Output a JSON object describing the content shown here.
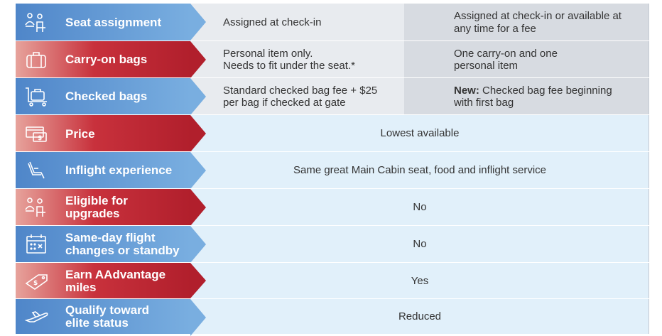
{
  "rows": [
    {
      "label": "Seat assignment",
      "icon": "seat-selection-icon",
      "color": "blue",
      "basic": "Assigned at check-in",
      "main": "Assigned at check-in or available at any time for a fee"
    },
    {
      "label": "Carry-on bags",
      "icon": "carry-on-bag-icon",
      "color": "red",
      "basic_line1": "Personal item only.",
      "basic_line2": "Needs to fit under the seat.*",
      "main_line1": "One carry-on and one",
      "main_line2": "personal item"
    },
    {
      "label": "Checked bags",
      "icon": "luggage-cart-icon",
      "color": "blue",
      "basic_line1": "Standard checked bag fee + $25",
      "basic_line2": "per bag if checked at gate",
      "main_bold": "New:",
      "main_rest": " Checked bag fee beginning",
      "main_line2": "with first bag"
    },
    {
      "label": "Price",
      "icon": "ticket-price-icon",
      "color": "red",
      "value": "Lowest available"
    },
    {
      "label": "Inflight experience",
      "icon": "reclining-seat-icon",
      "color": "blue",
      "value": "Same great Main Cabin seat, food and inflight service"
    },
    {
      "label_line1": "Eligible for",
      "label_line2": "upgrades",
      "icon": "upgrade-people-icon",
      "color": "red",
      "value": "No"
    },
    {
      "label_line1": "Same-day flight",
      "label_line2": "changes or standby",
      "icon": "calendar-icon",
      "color": "blue",
      "value": "No"
    },
    {
      "label_line1": "Earn AAdvantage",
      "label_line2": "miles",
      "icon": "miles-tag-icon",
      "color": "red",
      "value": "Yes"
    },
    {
      "label_line1": "Qualify toward",
      "label_line2": "elite status",
      "icon": "airplane-takeoff-icon",
      "color": "blue",
      "value": "Reduced"
    }
  ],
  "colors": {
    "blue": "#5b93d1",
    "red": "#c0283a",
    "basic_bg": "#e8ebef",
    "main_bg": "#d7dbe1",
    "shared_bg": "#e1f0fa"
  }
}
